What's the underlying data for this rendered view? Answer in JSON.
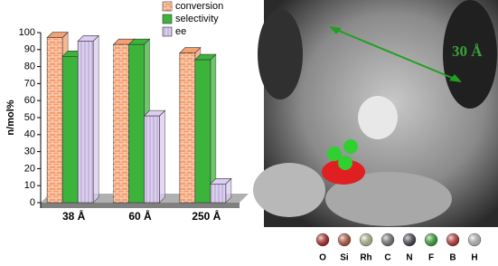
{
  "chart_data": {
    "type": "bar3d",
    "y_label": "n/mol%",
    "categories": [
      "38 Å",
      "60 Å",
      "250 Å"
    ],
    "series": [
      {
        "name": "conversion",
        "color": "#f4a070",
        "values": [
          97,
          93,
          88
        ]
      },
      {
        "name": "selectivity",
        "color": "#3cb43c",
        "values": [
          86,
          93,
          84
        ]
      },
      {
        "name": "ee",
        "color": "#dccdf2",
        "values": [
          95,
          51,
          11
        ]
      }
    ],
    "ylim": [
      0,
      100
    ],
    "yticks": [
      0,
      10,
      20,
      30,
      40,
      50,
      60,
      70,
      80,
      90,
      100
    ],
    "legend": "top-right"
  },
  "image_panel": {
    "annotation": "30 Å",
    "atom_legend": [
      {
        "label": "O",
        "color": "#e02020"
      },
      {
        "label": "Si",
        "color": "#e8603c"
      },
      {
        "label": "Rh",
        "color": "#eeeebb"
      },
      {
        "label": "C",
        "color": "#909090"
      },
      {
        "label": "N",
        "color": "#4a4a5a"
      },
      {
        "label": "F",
        "color": "#30d030"
      },
      {
        "label": "B",
        "color": "#f03030"
      },
      {
        "label": "H",
        "color": "#f4f4f4"
      }
    ]
  }
}
